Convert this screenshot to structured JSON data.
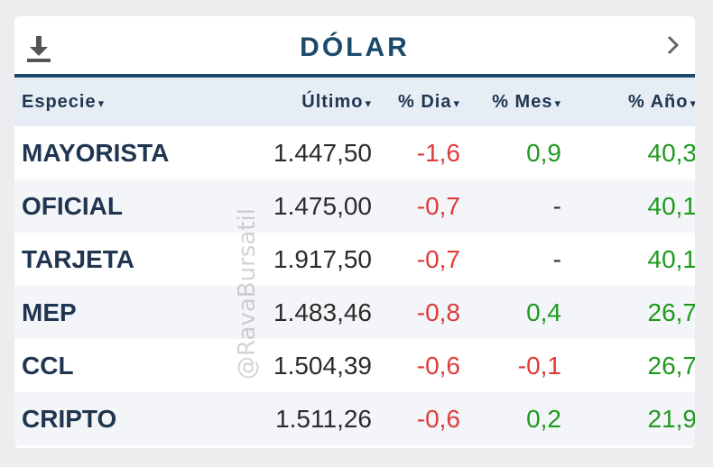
{
  "header": {
    "title": "DÓLAR",
    "download_icon": "download-icon",
    "next_icon": "chevron-right-icon"
  },
  "columns": [
    {
      "label": "Especie",
      "sort_icon": "▾"
    },
    {
      "label": "Último",
      "sort_icon": "▾"
    },
    {
      "label": "% Dia",
      "sort_icon": "▾"
    },
    {
      "label": "% Mes",
      "sort_icon": "▾"
    },
    {
      "label": "% Año",
      "sort_icon": "▾"
    }
  ],
  "rows": [
    {
      "name": "MAYORISTA",
      "last": "1.447,50",
      "day": "-1,6",
      "month": "0,9",
      "year": "40,3"
    },
    {
      "name": "OFICIAL",
      "last": "1.475,00",
      "day": "-0,7",
      "month": "-",
      "year": "40,1"
    },
    {
      "name": "TARJETA",
      "last": "1.917,50",
      "day": "-0,7",
      "month": "-",
      "year": "40,1"
    },
    {
      "name": "MEP",
      "last": "1.483,46",
      "day": "-0,8",
      "month": "0,4",
      "year": "26,7"
    },
    {
      "name": "CCL",
      "last": "1.504,39",
      "day": "-0,6",
      "month": "-0,1",
      "year": "26,7"
    },
    {
      "name": "CRIPTO",
      "last": "1.511,26",
      "day": "-0,6",
      "month": "0,2",
      "year": "21,9"
    }
  ],
  "watermark": "@RavaBursatil",
  "colors": {
    "brand": "#1b4a6b",
    "negative": "#e03a3a",
    "positive": "#1f9a1f",
    "header_bg": "#e6edf5"
  }
}
